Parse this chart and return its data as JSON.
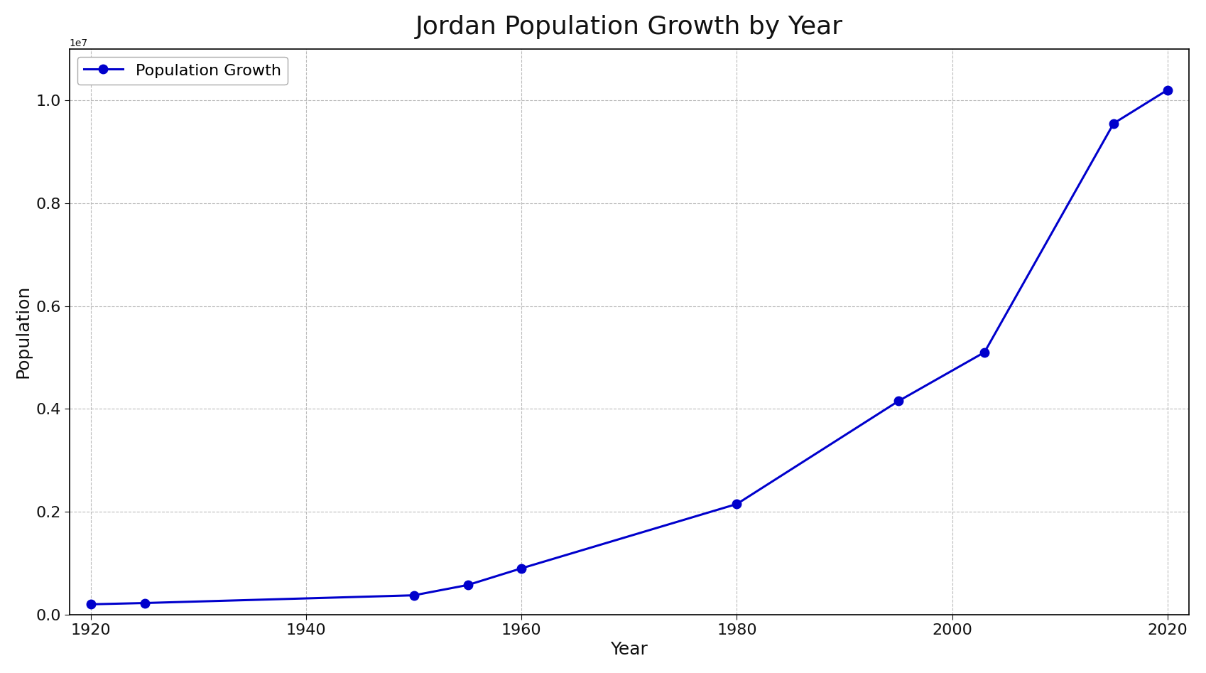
{
  "years": [
    1920,
    1925,
    1950,
    1955,
    1960,
    1980,
    1995,
    2003,
    2015,
    2020
  ],
  "population": [
    200000,
    225000,
    375000,
    575000,
    900000,
    2150000,
    4150000,
    5100000,
    9550000,
    10200000
  ],
  "line_color": "#0000cc",
  "marker_color": "#0000cc",
  "title": "Jordan Population Growth by Year",
  "xlabel": "Year",
  "ylabel": "Population",
  "legend_label": "Population Growth",
  "background_color": "#ffffff",
  "grid_color": "#bbbbbb",
  "title_fontsize": 26,
  "label_fontsize": 18,
  "tick_fontsize": 16,
  "legend_fontsize": 16,
  "ylim": [
    0,
    11000000
  ],
  "xlim": [
    1918,
    2022
  ]
}
